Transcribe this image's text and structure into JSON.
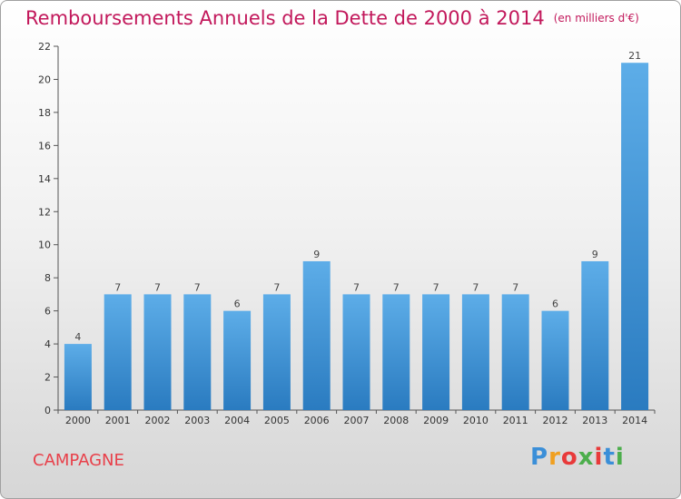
{
  "title": "Remboursements Annuels de la Dette de 2000 à 2014",
  "unit": "(en milliers d'€)",
  "commune": "CAMPAGNE",
  "logo": {
    "letters": [
      "P",
      "r",
      "o",
      "x",
      "i",
      "t",
      "i"
    ],
    "colors": [
      "#3b8fd8",
      "#f0a020",
      "#e83a3a",
      "#4cae4c",
      "#e83a3a",
      "#3b8fd8",
      "#4cae4c"
    ]
  },
  "colors": {
    "title": "#c2185b",
    "commune": "#e8404a",
    "bar_light": "#5dade8",
    "bar_dark": "#2a7bc0",
    "axis": "#555555"
  },
  "chart_data": {
    "type": "bar",
    "title": "Remboursements Annuels de la Dette de 2000 à 2014",
    "xlabel": "",
    "ylabel": "",
    "categories": [
      "2000",
      "2001",
      "2002",
      "2003",
      "2004",
      "2005",
      "2006",
      "2007",
      "2008",
      "2009",
      "2010",
      "2011",
      "2012",
      "2013",
      "2014"
    ],
    "values": [
      4,
      7,
      7,
      7,
      6,
      7,
      9,
      7,
      7,
      7,
      7,
      7,
      6,
      9,
      21
    ],
    "ylim": [
      0,
      22
    ],
    "yticks": [
      0,
      2,
      4,
      6,
      8,
      10,
      12,
      14,
      16,
      18,
      20,
      22
    ],
    "grid": false,
    "legend": "none"
  }
}
